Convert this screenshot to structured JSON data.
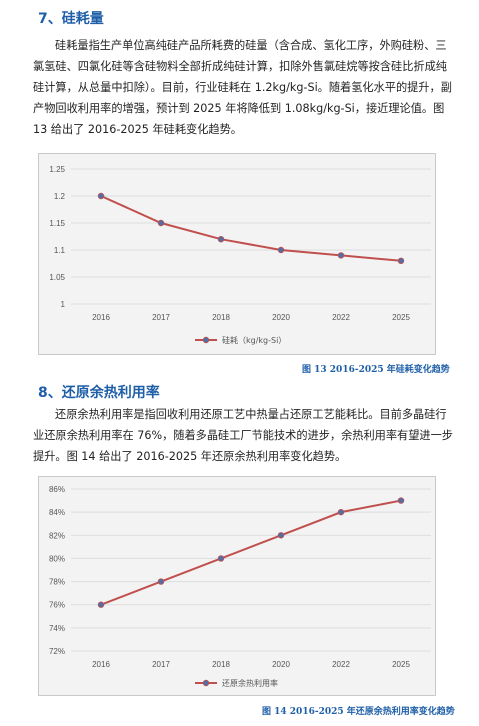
{
  "section7": {
    "heading": "7、硅耗量",
    "paragraph": "硅耗量指生产单位高纯硅产品所耗费的硅量（含合成、氢化工序，外购硅粉、三氯氢硅、四氯化硅等含硅物料全部折成纯硅计算，扣除外售氯硅烷等按含硅比折成纯硅计算，从总量中扣除）。目前，行业硅耗在 1.2kg/kg-Si。随着氢化水平的提升，副产物回收利用率的增强，预计到 2025 年将降低到 1.08kg/kg-Si，接近理论值。图 13 给出了 2016-2025 年硅耗变化趋势。",
    "caption": "图 13 2016-2025 年硅耗变化趋势"
  },
  "section8": {
    "heading": "8、还原余热利用率",
    "paragraph": "还原余热利用率是指回收利用还原工艺中热量占还原工艺能耗比。目前多晶硅行业还原余热利用率在 76%，随着多晶硅工厂节能技术的进步，余热利用率有望进一步提升。图 14 给出了 2016-2025 年还原余热利用率变化趋势。",
    "caption": "图 14 2016-2025 年还原余热利用率变化趋势"
  },
  "colors": {
    "heading": "#1f5fa8",
    "line": "#c0504d",
    "marker": "#4f6fa8",
    "grid": "#dddddd"
  },
  "chart_data": [
    {
      "type": "line",
      "title": "",
      "xlabel": "",
      "ylabel": "",
      "categories": [
        "2016",
        "2017",
        "2018",
        "2020",
        "2022",
        "2025"
      ],
      "series": [
        {
          "name": "硅耗（kg/kg-Si）",
          "values": [
            1.2,
            1.15,
            1.12,
            1.1,
            1.09,
            1.08
          ]
        }
      ],
      "ylim": [
        1,
        1.25
      ],
      "yticks": [
        "1",
        "1.05",
        "1.1",
        "1.15",
        "1.2",
        "1.25"
      ],
      "grid": true,
      "legend": "bottom"
    },
    {
      "type": "line",
      "title": "",
      "xlabel": "",
      "ylabel": "",
      "categories": [
        "2016",
        "2017",
        "2018",
        "2020",
        "2022",
        "2025"
      ],
      "series": [
        {
          "name": "还原余热利用率",
          "values": [
            76,
            78,
            80,
            82,
            84,
            85
          ]
        }
      ],
      "ylim": [
        72,
        86
      ],
      "yticks": [
        "72%",
        "74%",
        "76%",
        "78%",
        "80%",
        "82%",
        "84%",
        "86%"
      ],
      "grid": true,
      "legend": "bottom"
    }
  ]
}
